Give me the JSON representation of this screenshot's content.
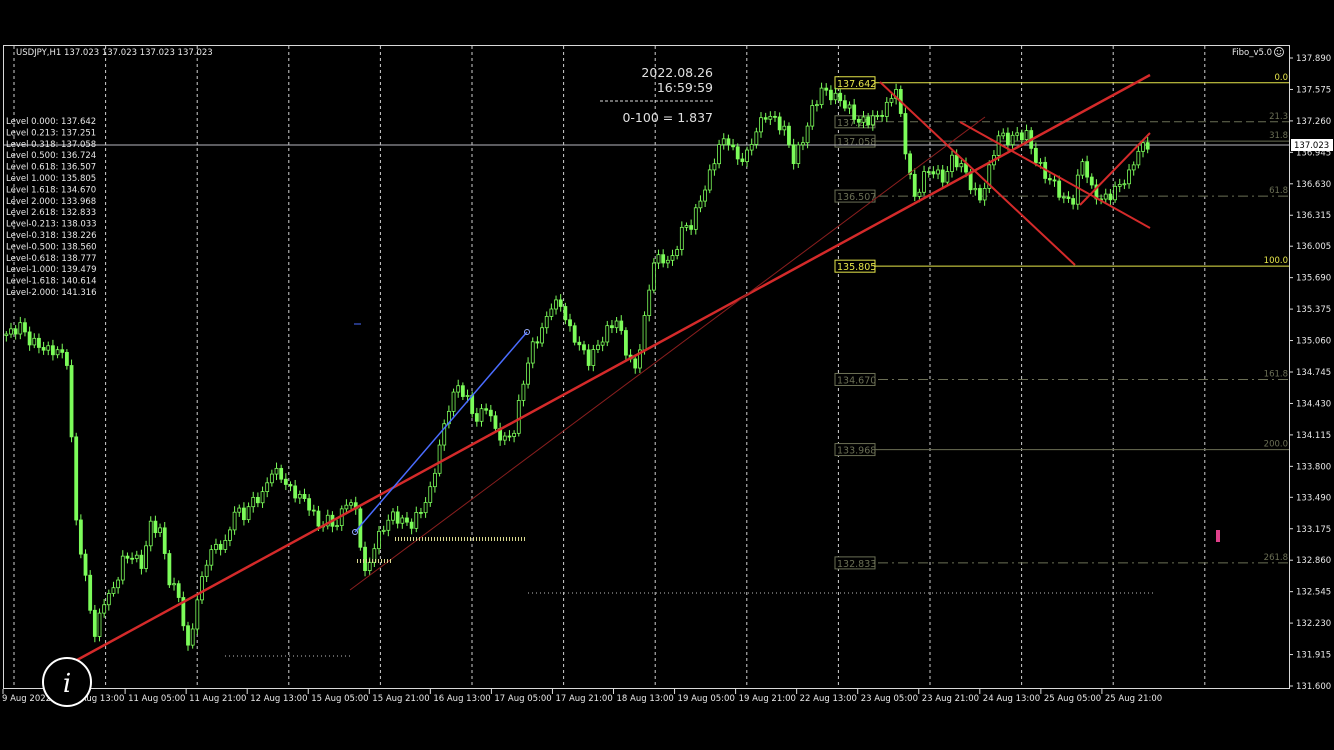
{
  "header": {
    "symbol_info": "USDJPY,H1  137.023 137.023 137.023 137.023",
    "indicator_name": "Fibo_v5.0",
    "smiley_icon": "smiley-icon"
  },
  "levels_list": [
    "Level 0.000: 137.642",
    "Level 0.213: 137.251",
    "Level 0.318: 137.058",
    "Level 0.500: 136.724",
    "Level 0.618: 136.507",
    "Level 1.000: 135.805",
    "Level 1.618: 134.670",
    "Level 2.000: 133.968",
    "Level 2.618: 132.833",
    "Level-0.213: 138.033",
    "Level-0.318: 138.226",
    "Level-0.500: 138.560",
    "Level-0.618: 138.777",
    "Level-1.000: 139.479",
    "Level-1.618: 140.614",
    "Level-2.000: 141.316"
  ],
  "info_panel": {
    "date": "2022.08.26",
    "time": "16:59:59",
    "range": "0-100 = 1.837"
  },
  "current_price": "137.023",
  "colors": {
    "bull_candle": "#7CFC5A",
    "trendline": "#d42a2a",
    "fibo_main": "#e6e64a",
    "fibo_ext": "#6b6f55",
    "blue_line": "#4a6cff",
    "marker": "#e0408a"
  },
  "chart_data": {
    "type": "candlestick",
    "title": "USDJPY,H1",
    "ylim": [
      131.6,
      137.89
    ],
    "grid": true,
    "y_ticks": [
      "137.890",
      "137.575",
      "137.260",
      "136.945",
      "136.630",
      "136.315",
      "136.005",
      "135.690",
      "135.375",
      "135.060",
      "134.745",
      "134.430",
      "134.115",
      "133.800",
      "133.490",
      "133.175",
      "132.860",
      "132.545",
      "132.230",
      "131.915",
      "131.600"
    ],
    "x_ticks": [
      "9 Aug 2022",
      "10 Aug 13:00",
      "11 Aug 05:00",
      "11 Aug 21:00",
      "12 Aug 13:00",
      "15 Aug 05:00",
      "15 Aug 21:00",
      "16 Aug 13:00",
      "17 Aug 05:00",
      "17 Aug 21:00",
      "18 Aug 13:00",
      "19 Aug 05:00",
      "19 Aug 21:00",
      "22 Aug 13:00",
      "23 Aug 05:00",
      "23 Aug 21:00",
      "24 Aug 13:00",
      "25 Aug 05:00",
      "25 Aug 21:00"
    ],
    "closes_approx": [
      135.11,
      135.14,
      135.21,
      135.06,
      135.01,
      134.96,
      134.96,
      134.86,
      133.26,
      132.66,
      132.11,
      132.46,
      132.56,
      132.86,
      132.91,
      132.81,
      133.21,
      133.16,
      132.66,
      132.5,
      131.96,
      132.46,
      132.86,
      133.01,
      133.01,
      133.36,
      133.31,
      133.46,
      133.51,
      133.76,
      133.7,
      133.56,
      133.5,
      133.41,
      133.21,
      133.26,
      133.21,
      133.46,
      133.36,
      132.71,
      133.0,
      133.2,
      133.31,
      133.25,
      133.22,
      133.36,
      133.55,
      134.0,
      134.4,
      134.61,
      134.46,
      134.26,
      134.41,
      134.16,
      134.06,
      134.16,
      134.66,
      135.01,
      135.16,
      135.42,
      135.42,
      135.16,
      135.01,
      134.86,
      135.01,
      135.16,
      135.27,
      134.96,
      134.76,
      135.27,
      135.87,
      135.87,
      135.87,
      136.17,
      136.22,
      136.47,
      136.72,
      137.02,
      137.07,
      136.87,
      136.92,
      137.17,
      137.32,
      137.27,
      137.17,
      136.87,
      137.07,
      137.37,
      137.57,
      137.52,
      137.47,
      137.37,
      137.25,
      137.27,
      137.3,
      137.4,
      137.6,
      136.97,
      136.47,
      136.72,
      136.77,
      136.67,
      136.87,
      136.82,
      136.62,
      136.47,
      136.77,
      137.12,
      137.07,
      137.12,
      137.12,
      136.87,
      136.72,
      136.62,
      136.47,
      136.47,
      136.87,
      136.57,
      136.47,
      136.52,
      136.62,
      136.72,
      136.97,
      137.023
    ],
    "fibo_levels": [
      {
        "pct": "0.0",
        "price": 137.642,
        "label": "137.642",
        "style": "main"
      },
      {
        "pct": "21.3",
        "price": 137.251,
        "label": "137.251",
        "style": "dash"
      },
      {
        "pct": "31.8",
        "price": 137.058,
        "label": "137.058",
        "style": "solid"
      },
      {
        "pct": "61.8",
        "price": 136.507,
        "label": "136.507",
        "style": "dashdot"
      },
      {
        "pct": "100.0",
        "price": 135.805,
        "label": "135.805",
        "style": "main"
      },
      {
        "pct": "161.8",
        "price": 134.67,
        "label": "134.670",
        "style": "dashdot"
      },
      {
        "pct": "200.0",
        "price": 133.968,
        "label": "133.968",
        "style": "solid"
      },
      {
        "pct": "261.8",
        "price": 132.833,
        "label": "132.833",
        "style": "dashdot"
      }
    ]
  }
}
